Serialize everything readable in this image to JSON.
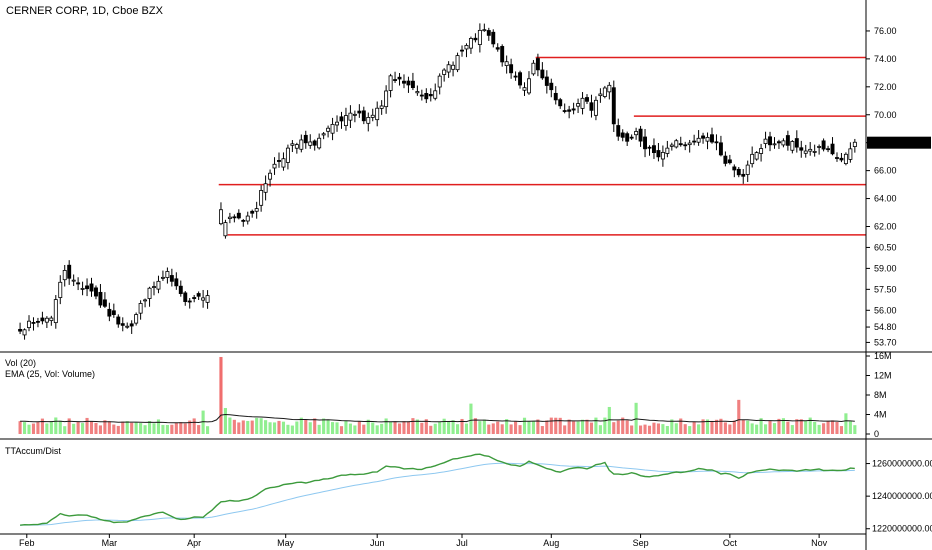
{
  "chart_data": [
    {
      "type": "candlestick",
      "title": "CERNER CORP, 1D, Cboe BZX",
      "ylim": [
        53.3,
        77.5
      ],
      "y_ticks": [
        "76.00",
        "74.00",
        "72.00",
        "70.00",
        "68.00",
        "66.00",
        "64.00",
        "62.00",
        "60.50",
        "59.00",
        "57.50",
        "56.00",
        "54.80",
        "53.70"
      ],
      "x_ticks": [
        {
          "label": "Feb",
          "x": 1.5
        },
        {
          "label": "Mar",
          "x": 20
        },
        {
          "label": "Apr",
          "x": 39
        },
        {
          "label": "May",
          "x": 59.5
        },
        {
          "label": "Jun",
          "x": 80
        },
        {
          "label": "Jul",
          "x": 99
        },
        {
          "label": "Aug",
          "x": 119
        },
        {
          "label": "Sep",
          "x": 139
        },
        {
          "label": "Oct",
          "x": 159
        },
        {
          "label": "Nov",
          "x": 179
        }
      ],
      "x_range": [
        -4.5,
        189.5
      ],
      "support_resistance_lines": [
        {
          "value": 74.1,
          "x_start": 115.5
        },
        {
          "value": 69.9,
          "x_start": 137.5
        },
        {
          "value": 65.0,
          "x_start": 44.5
        },
        {
          "value": 61.4,
          "x_start": 46.5
        }
      ],
      "last_price": 68.0,
      "close_waypoints": [
        [
          0,
          54.8
        ],
        [
          3,
          55.0
        ],
        [
          7,
          55.6
        ],
        [
          10,
          59.0
        ],
        [
          12,
          58.0
        ],
        [
          16,
          57.5
        ],
        [
          19,
          56.0
        ],
        [
          22,
          55.2
        ],
        [
          25,
          55.0
        ],
        [
          28,
          57.0
        ],
        [
          31,
          58.0
        ],
        [
          33,
          58.5
        ],
        [
          36,
          57.0
        ],
        [
          38,
          56.8
        ],
        [
          42,
          57.3
        ],
        [
          46,
          62.3
        ],
        [
          48,
          62.5
        ],
        [
          50,
          62.5
        ],
        [
          53,
          63.5
        ],
        [
          56,
          66.0
        ],
        [
          60,
          67.5
        ],
        [
          63,
          68.0
        ],
        [
          65,
          67.8
        ],
        [
          69,
          68.8
        ],
        [
          72,
          69.5
        ],
        [
          75,
          70.0
        ],
        [
          78,
          69.8
        ],
        [
          81,
          70.6
        ],
        [
          83,
          72.5
        ],
        [
          86,
          72.3
        ],
        [
          88,
          71.8
        ],
        [
          91,
          71.3
        ],
        [
          93,
          72.0
        ],
        [
          96,
          73.5
        ],
        [
          99,
          74.5
        ],
        [
          102,
          75.5
        ],
        [
          104,
          76.0
        ],
        [
          106,
          75.0
        ],
        [
          108,
          74.0
        ],
        [
          110,
          73.0
        ],
        [
          113,
          72.0
        ],
        [
          115,
          73.5
        ],
        [
          117,
          72.5
        ],
        [
          120,
          71.0
        ],
        [
          122,
          70.0
        ],
        [
          124,
          70.5
        ],
        [
          126,
          71.0
        ],
        [
          128,
          70.5
        ],
        [
          130,
          71.5
        ],
        [
          132,
          72.3
        ],
        [
          133,
          69.5
        ],
        [
          134,
          68.5
        ],
        [
          136,
          68.3
        ],
        [
          138,
          69.0
        ],
        [
          140,
          67.8
        ],
        [
          142,
          67.0
        ],
        [
          144,
          67.5
        ],
        [
          147,
          68.0
        ],
        [
          150,
          67.8
        ],
        [
          153,
          68.3
        ],
        [
          156,
          68.0
        ],
        [
          158,
          66.5
        ],
        [
          160,
          66.3
        ],
        [
          162,
          65.4
        ],
        [
          164,
          67.0
        ],
        [
          167,
          68.0
        ],
        [
          170,
          68.0
        ],
        [
          173,
          67.8
        ],
        [
          175,
          67.5
        ],
        [
          177,
          67.5
        ],
        [
          180,
          67.5
        ],
        [
          182,
          67.0
        ],
        [
          184,
          66.8
        ],
        [
          186,
          67.3
        ],
        [
          187,
          68.0
        ]
      ],
      "volume": {
        "label": "Vol (20)",
        "ema_label": "EMA (25, Vol: Volume)",
        "ylim": [
          0,
          16000000
        ],
        "y_ticks": [
          "16M",
          "12M",
          "8M",
          "4M",
          "0"
        ],
        "spike": {
          "x": 45,
          "value": 15800000
        }
      },
      "indicator": {
        "label": "TTAccum/Dist",
        "ylim": [
          1218000000,
          1272000000
        ],
        "y_ticks": [
          "1260000000.00",
          "1240000000.00",
          "1220000000.00"
        ]
      },
      "colors": {
        "up_body": "#ffffff",
        "down_body": "#000000",
        "wick": "#000000",
        "volume_up": "#90ee90",
        "volume_down": "#f08080",
        "volume_spike": "#f06e6e",
        "level_lines": "#e01e1e",
        "ema_line": "#1a1a1a",
        "accum_line": "#3c9a3c",
        "accum_signal": "#8ec8f0",
        "divider": "#000000"
      }
    }
  ]
}
